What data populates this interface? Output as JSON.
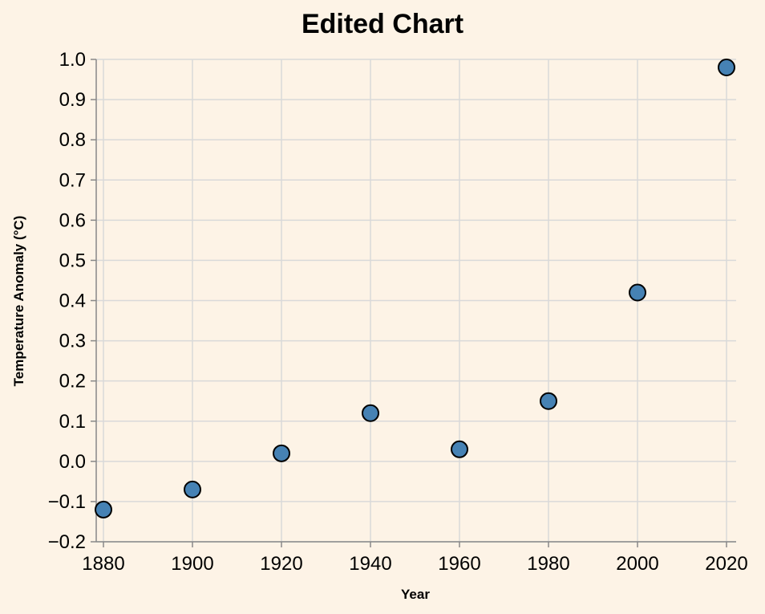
{
  "chart_data": {
    "type": "scatter",
    "title": "Edited Chart",
    "xlabel": "Year",
    "ylabel": "Temperature Anomaly (°C)",
    "xlim": [
      1880,
      2020
    ],
    "ylim": [
      -0.2,
      1.0
    ],
    "x_ticks": [
      1880,
      1900,
      1920,
      1940,
      1960,
      1980,
      2000,
      2020
    ],
    "y_ticks": [
      -0.2,
      -0.1,
      0.0,
      0.1,
      0.2,
      0.3,
      0.4,
      0.5,
      0.6,
      0.7,
      0.8,
      0.9,
      1.0
    ],
    "grid": true,
    "point_color": "#4682b4",
    "background": "#fdf3e6",
    "points": [
      {
        "x": 1880,
        "y": -0.12
      },
      {
        "x": 1900,
        "y": -0.07
      },
      {
        "x": 1920,
        "y": 0.02
      },
      {
        "x": 1940,
        "y": 0.12
      },
      {
        "x": 1960,
        "y": 0.03
      },
      {
        "x": 1980,
        "y": 0.15
      },
      {
        "x": 2000,
        "y": 0.42
      },
      {
        "x": 2020,
        "y": 0.98
      }
    ]
  }
}
